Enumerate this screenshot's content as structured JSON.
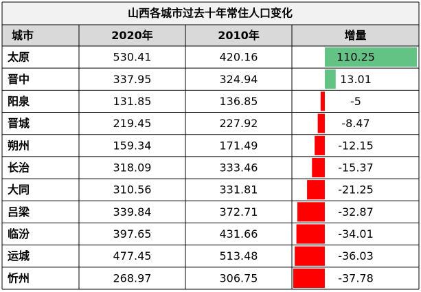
{
  "title": "山西各城市过去十年常住人口变化",
  "table": {
    "headers": [
      "城市",
      "2020年",
      "2010年",
      "增量"
    ],
    "rows": [
      [
        "太原",
        530.41,
        420.16,
        110.25
      ],
      [
        "晋中",
        337.95,
        324.94,
        13.01
      ],
      [
        "阳泉",
        131.85,
        136.85,
        -5
      ],
      [
        "晋城",
        219.45,
        227.92,
        -8.47
      ],
      [
        "朔州",
        159.34,
        171.49,
        -12.15
      ],
      [
        "长治",
        318.09,
        333.46,
        -15.37
      ],
      [
        "大同",
        310.56,
        331.81,
        -21.25
      ],
      [
        "吕梁",
        339.84,
        372.71,
        -32.87
      ],
      [
        "临汾",
        397.65,
        431.66,
        -34.01
      ],
      [
        "运城",
        477.45,
        513.48,
        -36.03
      ],
      [
        "忻州",
        268.97,
        306.75,
        -37.78
      ]
    ]
  }
}
